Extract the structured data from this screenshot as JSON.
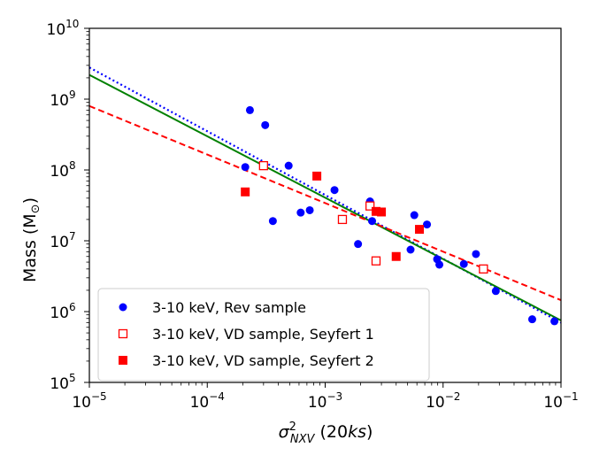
{
  "chart_data": {
    "type": "scatter",
    "xscale": "log",
    "yscale": "log",
    "xlim": [
      1e-05,
      0.1
    ],
    "ylim": [
      100000,
      10000000000
    ],
    "xlabel_base": "σ",
    "xlabel_sup": "2",
    "xlabel_sub": "NXV",
    "xlabel_suffix": " (20",
    "xlabel_italic": "ks",
    "xlabel_close": ")",
    "ylabel_text": "Mass (M",
    "ylabel_sub": "⊙",
    "ylabel_close": ")",
    "x_ticks": [
      {
        "base": "10",
        "exp": "−5",
        "value": 1e-05
      },
      {
        "base": "10",
        "exp": "−4",
        "value": 0.0001
      },
      {
        "base": "10",
        "exp": "−3",
        "value": 0.001
      },
      {
        "base": "10",
        "exp": "−2",
        "value": 0.01
      },
      {
        "base": "10",
        "exp": "−1",
        "value": 0.1
      }
    ],
    "y_ticks": [
      {
        "base": "10",
        "exp": "5",
        "value": 100000
      },
      {
        "base": "10",
        "exp": "6",
        "value": 1000000
      },
      {
        "base": "10",
        "exp": "7",
        "value": 10000000
      },
      {
        "base": "10",
        "exp": "8",
        "value": 100000000
      },
      {
        "base": "10",
        "exp": "9",
        "value": 1000000000
      },
      {
        "base": "10",
        "exp": "10",
        "value": 10000000000
      }
    ],
    "series": [
      {
        "name": "3-10 keV, Rev sample",
        "marker": "circle",
        "color": "#0000ff",
        "points": [
          [
            0.00021,
            110000000
          ],
          [
            0.00023,
            700000000
          ],
          [
            0.00031,
            430000000
          ],
          [
            0.00036,
            19000000
          ],
          [
            0.00049,
            115000000
          ],
          [
            0.00062,
            25000000
          ],
          [
            0.00074,
            27000000
          ],
          [
            0.0012,
            52000000
          ],
          [
            0.0019,
            9000000
          ],
          [
            0.0024,
            36000000
          ],
          [
            0.0025,
            19000000
          ],
          [
            0.0053,
            7500000
          ],
          [
            0.0057,
            23000000
          ],
          [
            0.0073,
            17000000
          ],
          [
            0.0089,
            5500000
          ],
          [
            0.0093,
            4600000
          ],
          [
            0.015,
            4700000
          ],
          [
            0.019,
            6500000
          ],
          [
            0.028,
            1950000
          ],
          [
            0.057,
            780000
          ],
          [
            0.088,
            730000
          ]
        ]
      },
      {
        "name": "3-10 keV, VD sample, Seyfert 1",
        "marker": "square-open",
        "color": "#ff0000",
        "points": [
          [
            0.0003,
            115000000
          ],
          [
            0.0014,
            20000000
          ],
          [
            0.0024,
            31000000
          ],
          [
            0.0027,
            5200000
          ],
          [
            0.022,
            4000000
          ]
        ]
      },
      {
        "name": "3-10 keV, VD sample, Seyfert 2",
        "marker": "square-filled",
        "color": "#ff0000",
        "points": [
          [
            0.00021,
            49000000
          ],
          [
            0.00085,
            82000000
          ],
          [
            0.0027,
            26000000
          ],
          [
            0.003,
            25500000
          ],
          [
            0.004,
            6000000
          ],
          [
            0.0063,
            14500000
          ]
        ]
      }
    ],
    "fit_lines": [
      {
        "name": "dotted-blue-fit",
        "style": "dotted",
        "color": "#0000ff",
        "start": [
          1e-05,
          2800000000
        ],
        "end": [
          0.1,
          700000
        ]
      },
      {
        "name": "solid-green-fit",
        "style": "solid",
        "color": "#008000",
        "start": [
          1e-05,
          2200000000
        ],
        "end": [
          0.1,
          750000
        ]
      },
      {
        "name": "dashed-red-fit",
        "style": "dashed",
        "color": "#ff0000",
        "start": [
          1e-05,
          800000000
        ],
        "end": [
          0.1,
          1450000
        ]
      }
    ],
    "legend": {
      "position": "lower-left",
      "entries": [
        "3-10 keV, Rev sample",
        "3-10 keV, VD sample, Seyfert 1",
        "3-10 keV, VD sample, Seyfert 2"
      ]
    }
  }
}
